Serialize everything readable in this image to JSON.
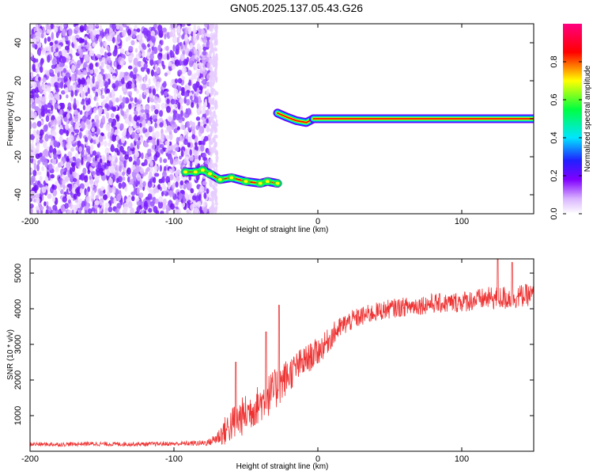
{
  "figure": {
    "title": "GN05.2025.137.05.43.G26"
  },
  "chart_data": [
    {
      "type": "heatmap",
      "xlabel": "Height of straight line (km)",
      "ylabel": "Frequency (Hz)",
      "xlim": [
        -200,
        150
      ],
      "ylim": [
        -50,
        50
      ],
      "xticks": [
        -200,
        -100,
        0,
        100
      ],
      "yticks": [
        -40,
        -20,
        0,
        20,
        40
      ],
      "grid": false,
      "colorbar": {
        "label": "Normalized spectral amplitude",
        "range": [
          0,
          1
        ],
        "ticks": [
          0.0,
          0.2,
          0.4,
          0.6,
          0.8
        ],
        "colormap": [
          "#ffffff",
          "#8000ff",
          "#0000ff",
          "#00ffff",
          "#00ff00",
          "#ffff00",
          "#ff0000",
          "#ff00ff"
        ]
      },
      "features": {
        "noise_region_x": [
          -200,
          -75
        ],
        "noise_region_sparse_x": [
          -75,
          -70
        ],
        "descending_track": [
          [
            -92,
            -28
          ],
          [
            -85,
            -28
          ],
          [
            -80,
            -27
          ],
          [
            -75,
            -29
          ],
          [
            -68,
            -32
          ],
          [
            -60,
            -31
          ],
          [
            -50,
            -33
          ],
          [
            -40,
            -34
          ],
          [
            -35,
            -33
          ],
          [
            -28,
            -34
          ]
        ],
        "step_track": [
          [
            -28,
            3
          ],
          [
            -22,
            1
          ],
          [
            -15,
            -1
          ],
          [
            -8,
            -2
          ],
          [
            -3,
            0
          ]
        ],
        "flat_track": [
          [
            -3,
            0
          ],
          [
            150,
            0
          ]
        ]
      }
    },
    {
      "type": "line",
      "xlabel": "Height of straight line (km)",
      "ylabel": "SNR (10 * v/v)",
      "xlim": [
        -200,
        150
      ],
      "ylim": [
        0,
        5400
      ],
      "xticks": [
        -200,
        -100,
        0,
        100
      ],
      "yticks": [
        1000,
        2000,
        3000,
        4000,
        5000
      ],
      "grid": false,
      "series": [
        {
          "color": "#ee3333",
          "x": [
            -200,
            -180,
            -160,
            -140,
            -120,
            -100,
            -90,
            -80,
            -75,
            -70,
            -65,
            -60,
            -55,
            -50,
            -45,
            -40,
            -35,
            -30,
            -25,
            -20,
            -15,
            -10,
            -5,
            0,
            5,
            10,
            15,
            20,
            25,
            30,
            40,
            50,
            60,
            70,
            80,
            90,
            100,
            110,
            120,
            130,
            140,
            150
          ],
          "values": [
            200,
            190,
            210,
            200,
            200,
            210,
            220,
            230,
            260,
            380,
            550,
            750,
            900,
            1050,
            1200,
            1350,
            1550,
            1700,
            1950,
            2150,
            2350,
            2500,
            2650,
            2800,
            3000,
            3250,
            3450,
            3600,
            3700,
            3780,
            3900,
            4000,
            4050,
            4100,
            4150,
            4150,
            4200,
            4250,
            4300,
            4300,
            4350,
            4400
          ],
          "noise": [
            60,
            55,
            60,
            60,
            60,
            60,
            70,
            80,
            100,
            200,
            400,
            500,
            550,
            550,
            550,
            550,
            600,
            600,
            550,
            500,
            450,
            450,
            400,
            400,
            350,
            350,
            300,
            300,
            280,
            280,
            270,
            270,
            270,
            270,
            280,
            280,
            300,
            300,
            320,
            350,
            330,
            300
          ]
        }
      ],
      "spikes": [
        [
          -57,
          2500
        ],
        [
          -36,
          3350
        ],
        [
          -27,
          4100
        ],
        [
          125,
          5400
        ],
        [
          135,
          5300
        ]
      ]
    }
  ]
}
